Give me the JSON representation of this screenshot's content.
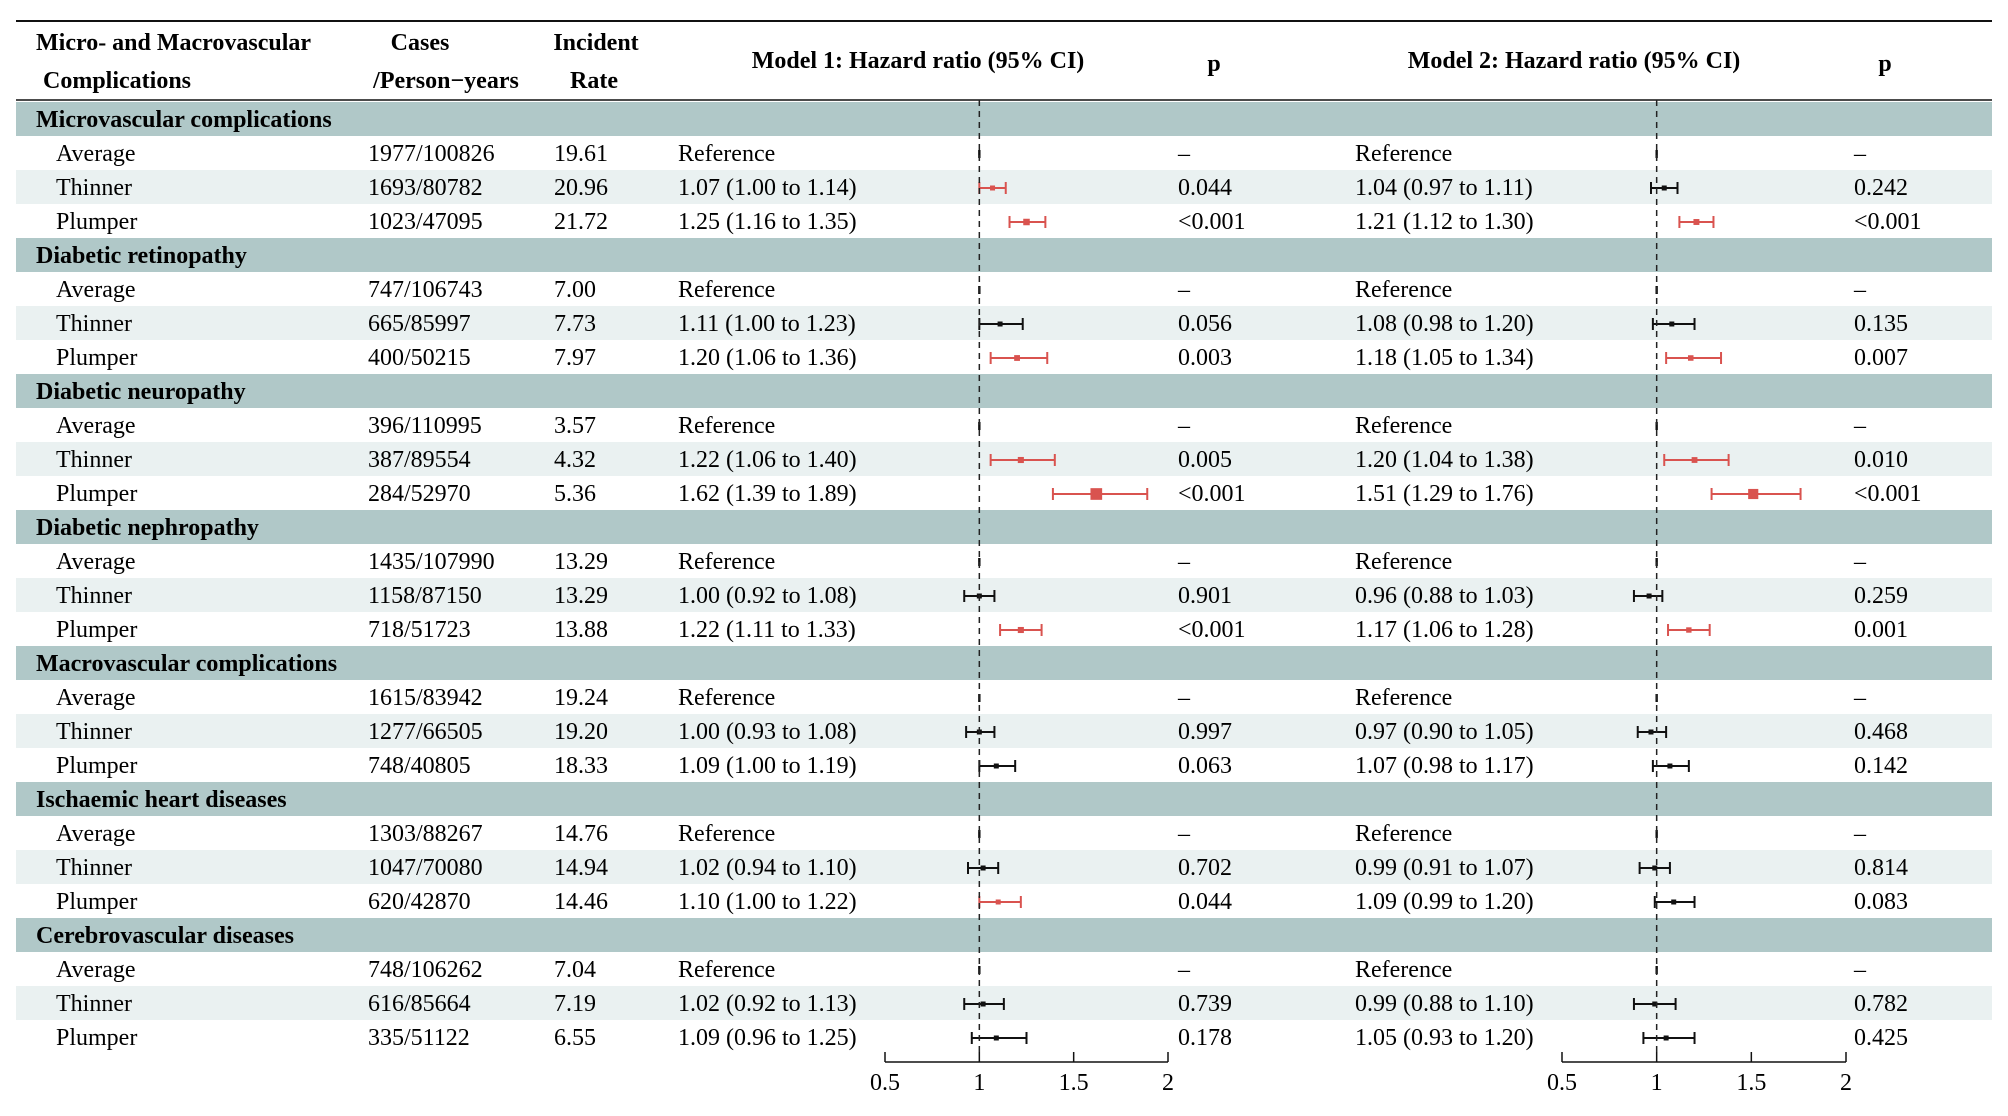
{
  "header": {
    "col_label_1": "Micro- and Macrovascular",
    "col_label_2": "Complications",
    "cases_1": "Cases",
    "cases_2": "/Person−years",
    "rate_1": "Incident",
    "rate_2": "Rate",
    "model1": "Model 1: Hazard ratio (95% CI)",
    "p1": "p",
    "model2": "Model 2: Hazard ratio (95% CI)",
    "p2": "p"
  },
  "chart_data": {
    "type": "forest",
    "x_axis": {
      "range": [
        0.5,
        2
      ],
      "ticks": [
        0.5,
        1,
        1.5,
        2
      ],
      "tick_labels": [
        "0.5",
        "1",
        "1.5",
        "2"
      ],
      "reference_line": 1
    },
    "colors": {
      "significant": "#d9534f",
      "non_significant": "#111111",
      "group_band": "#b0c8c8",
      "alt_row": "#eaf1f1"
    },
    "groups": [
      {
        "name": "Microvascular complications",
        "rows": [
          {
            "label": "Average",
            "cases": "1977/100826",
            "rate": "19.61",
            "m1": {
              "text": "Reference",
              "p": "–",
              "hr": 1.0,
              "lo": 1.0,
              "hi": 1.0,
              "sig": false
            },
            "m2": {
              "text": "Reference",
              "p": "–",
              "hr": 1.0,
              "lo": 1.0,
              "hi": 1.0,
              "sig": false
            }
          },
          {
            "label": "Thinner",
            "cases": "1693/80782",
            "rate": "20.96",
            "m1": {
              "text": "1.07 (1.00 to 1.14)",
              "p": "0.044",
              "hr": 1.07,
              "lo": 1.0,
              "hi": 1.14,
              "sig": true
            },
            "m2": {
              "text": "1.04 (0.97 to 1.11)",
              "p": "0.242",
              "hr": 1.04,
              "lo": 0.97,
              "hi": 1.11,
              "sig": false
            }
          },
          {
            "label": "Plumper",
            "cases": "1023/47095",
            "rate": "21.72",
            "m1": {
              "text": "1.25 (1.16 to 1.35)",
              "p": "<0.001",
              "hr": 1.25,
              "lo": 1.16,
              "hi": 1.35,
              "sig": true
            },
            "m2": {
              "text": "1.21 (1.12 to 1.30)",
              "p": "<0.001",
              "hr": 1.21,
              "lo": 1.12,
              "hi": 1.3,
              "sig": true
            }
          }
        ]
      },
      {
        "name": "Diabetic retinopathy",
        "rows": [
          {
            "label": "Average",
            "cases": "747/106743",
            "rate": "7.00",
            "m1": {
              "text": "Reference",
              "p": "–",
              "hr": 1.0,
              "lo": 1.0,
              "hi": 1.0,
              "sig": false
            },
            "m2": {
              "text": "Reference",
              "p": "–",
              "hr": 1.0,
              "lo": 1.0,
              "hi": 1.0,
              "sig": false
            }
          },
          {
            "label": "Thinner",
            "cases": "665/85997",
            "rate": "7.73",
            "m1": {
              "text": "1.11 (1.00 to 1.23)",
              "p": "0.056",
              "hr": 1.11,
              "lo": 1.0,
              "hi": 1.23,
              "sig": false
            },
            "m2": {
              "text": "1.08 (0.98 to 1.20)",
              "p": "0.135",
              "hr": 1.08,
              "lo": 0.98,
              "hi": 1.2,
              "sig": false
            }
          },
          {
            "label": "Plumper",
            "cases": "400/50215",
            "rate": "7.97",
            "m1": {
              "text": "1.20 (1.06 to 1.36)",
              "p": "0.003",
              "hr": 1.2,
              "lo": 1.06,
              "hi": 1.36,
              "sig": true
            },
            "m2": {
              "text": "1.18 (1.05 to 1.34)",
              "p": "0.007",
              "hr": 1.18,
              "lo": 1.05,
              "hi": 1.34,
              "sig": true
            }
          }
        ]
      },
      {
        "name": "Diabetic neuropathy",
        "rows": [
          {
            "label": "Average",
            "cases": "396/110995",
            "rate": "3.57",
            "m1": {
              "text": "Reference",
              "p": "–",
              "hr": 1.0,
              "lo": 1.0,
              "hi": 1.0,
              "sig": false
            },
            "m2": {
              "text": "Reference",
              "p": "–",
              "hr": 1.0,
              "lo": 1.0,
              "hi": 1.0,
              "sig": false
            }
          },
          {
            "label": "Thinner",
            "cases": "387/89554",
            "rate": "4.32",
            "m1": {
              "text": "1.22 (1.06 to 1.40)",
              "p": "0.005",
              "hr": 1.22,
              "lo": 1.06,
              "hi": 1.4,
              "sig": true
            },
            "m2": {
              "text": "1.20 (1.04 to 1.38)",
              "p": "0.010",
              "hr": 1.2,
              "lo": 1.04,
              "hi": 1.38,
              "sig": true
            }
          },
          {
            "label": "Plumper",
            "cases": "284/52970",
            "rate": "5.36",
            "m1": {
              "text": "1.62 (1.39 to 1.89)",
              "p": "<0.001",
              "hr": 1.62,
              "lo": 1.39,
              "hi": 1.89,
              "sig": true
            },
            "m2": {
              "text": "1.51 (1.29 to 1.76)",
              "p": "<0.001",
              "hr": 1.51,
              "lo": 1.29,
              "hi": 1.76,
              "sig": true
            }
          }
        ]
      },
      {
        "name": "Diabetic nephropathy",
        "rows": [
          {
            "label": "Average",
            "cases": "1435/107990",
            "rate": "13.29",
            "m1": {
              "text": "Reference",
              "p": "–",
              "hr": 1.0,
              "lo": 1.0,
              "hi": 1.0,
              "sig": false
            },
            "m2": {
              "text": "Reference",
              "p": "–",
              "hr": 1.0,
              "lo": 1.0,
              "hi": 1.0,
              "sig": false
            }
          },
          {
            "label": "Thinner",
            "cases": "1158/87150",
            "rate": "13.29",
            "m1": {
              "text": "1.00 (0.92 to 1.08)",
              "p": "0.901",
              "hr": 1.0,
              "lo": 0.92,
              "hi": 1.08,
              "sig": false
            },
            "m2": {
              "text": "0.96 (0.88 to 1.03)",
              "p": "0.259",
              "hr": 0.96,
              "lo": 0.88,
              "hi": 1.03,
              "sig": false
            }
          },
          {
            "label": "Plumper",
            "cases": "718/51723",
            "rate": "13.88",
            "m1": {
              "text": "1.22 (1.11 to 1.33)",
              "p": "<0.001",
              "hr": 1.22,
              "lo": 1.11,
              "hi": 1.33,
              "sig": true
            },
            "m2": {
              "text": "1.17 (1.06 to 1.28)",
              "p": "0.001",
              "hr": 1.17,
              "lo": 1.06,
              "hi": 1.28,
              "sig": true
            }
          }
        ]
      },
      {
        "name": "Macrovascular complications",
        "rows": [
          {
            "label": "Average",
            "cases": "1615/83942",
            "rate": "19.24",
            "m1": {
              "text": "Reference",
              "p": "–",
              "hr": 1.0,
              "lo": 1.0,
              "hi": 1.0,
              "sig": false
            },
            "m2": {
              "text": "Reference",
              "p": "–",
              "hr": 1.0,
              "lo": 1.0,
              "hi": 1.0,
              "sig": false
            }
          },
          {
            "label": "Thinner",
            "cases": "1277/66505",
            "rate": "19.20",
            "m1": {
              "text": "1.00 (0.93 to 1.08)",
              "p": "0.997",
              "hr": 1.0,
              "lo": 0.93,
              "hi": 1.08,
              "sig": false
            },
            "m2": {
              "text": "0.97 (0.90 to 1.05)",
              "p": "0.468",
              "hr": 0.97,
              "lo": 0.9,
              "hi": 1.05,
              "sig": false
            }
          },
          {
            "label": "Plumper",
            "cases": "748/40805",
            "rate": "18.33",
            "m1": {
              "text": "1.09 (1.00 to 1.19)",
              "p": "0.063",
              "hr": 1.09,
              "lo": 1.0,
              "hi": 1.19,
              "sig": false
            },
            "m2": {
              "text": "1.07 (0.98 to 1.17)",
              "p": "0.142",
              "hr": 1.07,
              "lo": 0.98,
              "hi": 1.17,
              "sig": false
            }
          }
        ]
      },
      {
        "name": "Ischaemic heart diseases",
        "rows": [
          {
            "label": "Average",
            "cases": "1303/88267",
            "rate": "14.76",
            "m1": {
              "text": "Reference",
              "p": "–",
              "hr": 1.0,
              "lo": 1.0,
              "hi": 1.0,
              "sig": false
            },
            "m2": {
              "text": "Reference",
              "p": "–",
              "hr": 1.0,
              "lo": 1.0,
              "hi": 1.0,
              "sig": false
            }
          },
          {
            "label": "Thinner",
            "cases": "1047/70080",
            "rate": "14.94",
            "m1": {
              "text": "1.02 (0.94 to 1.10)",
              "p": "0.702",
              "hr": 1.02,
              "lo": 0.94,
              "hi": 1.1,
              "sig": false
            },
            "m2": {
              "text": "0.99 (0.91 to 1.07)",
              "p": "0.814",
              "hr": 0.99,
              "lo": 0.91,
              "hi": 1.07,
              "sig": false
            }
          },
          {
            "label": "Plumper",
            "cases": "620/42870",
            "rate": "14.46",
            "m1": {
              "text": "1.10 (1.00 to 1.22)",
              "p": "0.044",
              "hr": 1.1,
              "lo": 1.0,
              "hi": 1.22,
              "sig": true
            },
            "m2": {
              "text": "1.09 (0.99 to 1.20)",
              "p": "0.083",
              "hr": 1.09,
              "lo": 0.99,
              "hi": 1.2,
              "sig": false
            }
          }
        ]
      },
      {
        "name": "Cerebrovascular diseases",
        "rows": [
          {
            "label": "Average",
            "cases": "748/106262",
            "rate": "7.04",
            "m1": {
              "text": "Reference",
              "p": "–",
              "hr": 1.0,
              "lo": 1.0,
              "hi": 1.0,
              "sig": false
            },
            "m2": {
              "text": "Reference",
              "p": "–",
              "hr": 1.0,
              "lo": 1.0,
              "hi": 1.0,
              "sig": false
            }
          },
          {
            "label": "Thinner",
            "cases": "616/85664",
            "rate": "7.19",
            "m1": {
              "text": "1.02 (0.92 to 1.13)",
              "p": "0.739",
              "hr": 1.02,
              "lo": 0.92,
              "hi": 1.13,
              "sig": false
            },
            "m2": {
              "text": "0.99 (0.88 to 1.10)",
              "p": "0.782",
              "hr": 0.99,
              "lo": 0.88,
              "hi": 1.1,
              "sig": false
            }
          },
          {
            "label": "Plumper",
            "cases": "335/51122",
            "rate": "6.55",
            "m1": {
              "text": "1.09 (0.96 to 1.25)",
              "p": "0.178",
              "hr": 1.09,
              "lo": 0.96,
              "hi": 1.25,
              "sig": false
            },
            "m2": {
              "text": "1.05 (0.93 to 1.20)",
              "p": "0.425",
              "hr": 1.05,
              "lo": 0.93,
              "hi": 1.2,
              "sig": false
            }
          }
        ]
      }
    ]
  }
}
